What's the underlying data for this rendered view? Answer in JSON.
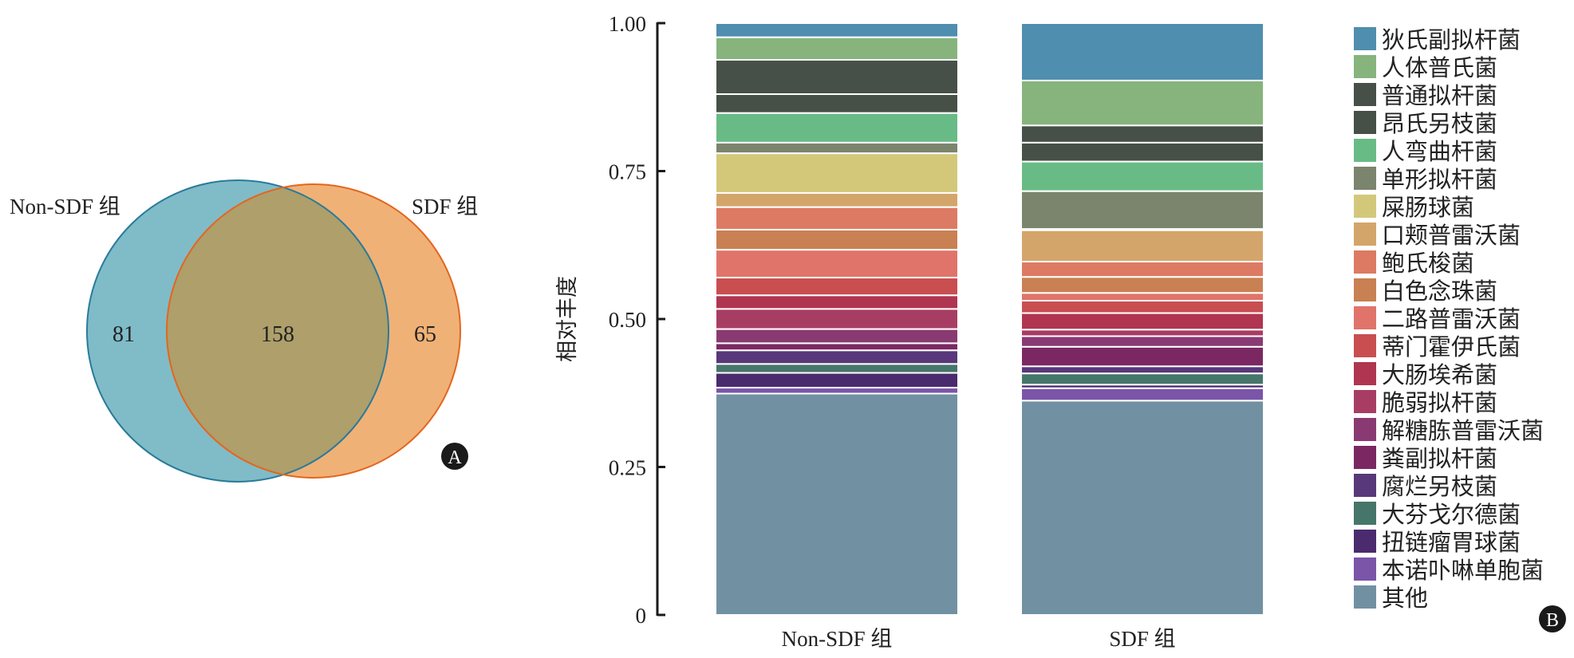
{
  "panel_a": {
    "badge": "A",
    "sets": [
      {
        "name": "Non-SDF 组",
        "unique": "81",
        "fill": "#7fbcc8",
        "stroke": "#2a7a9a"
      },
      {
        "name": "SDF 组",
        "unique": "65",
        "fill": "#f0b176",
        "stroke": "#e3661e"
      }
    ],
    "intersection": "158",
    "intersection_fill": "#ae9f6b"
  },
  "chart_data": {
    "type": "bar",
    "stacked": true,
    "badge": "B",
    "ylabel": "相对丰度",
    "xlabel": "",
    "ylim": [
      0,
      1
    ],
    "yticks": [
      "0",
      "0.25",
      "0.50",
      "0.75",
      "1.00"
    ],
    "ytick_values": [
      0,
      0.25,
      0.5,
      0.75,
      1.0
    ],
    "categories": [
      "Non-SDF 组",
      "SDF 组"
    ],
    "legend_position": "right",
    "series": [
      {
        "name": "狄氏副拟杆菌",
        "color": "#4f8eaf",
        "values": [
          0.024,
          0.097
        ]
      },
      {
        "name": "人体普氏菌",
        "color": "#86b47c",
        "values": [
          0.038,
          0.076
        ]
      },
      {
        "name": "普通拟杆菌",
        "color": "#475048",
        "values": [
          0.058,
          0.029
        ]
      },
      {
        "name": "昂氏另枝菌",
        "color": "#465046",
        "values": [
          0.032,
          0.032
        ]
      },
      {
        "name": "人弯曲杆菌",
        "color": "#69bb86",
        "values": [
          0.05,
          0.05
        ]
      },
      {
        "name": "单形拟杆菌",
        "color": "#7b846c",
        "values": [
          0.018,
          0.064
        ]
      },
      {
        "name": "屎肠球菌",
        "color": "#d3c87a",
        "values": [
          0.067,
          0.002
        ]
      },
      {
        "name": "口颊普雷沃菌",
        "color": "#d4a56a",
        "values": [
          0.024,
          0.053
        ]
      },
      {
        "name": "鲍氏梭菌",
        "color": "#dd7a63",
        "values": [
          0.038,
          0.026
        ]
      },
      {
        "name": "白色念珠菌",
        "color": "#c98052",
        "values": [
          0.034,
          0.027
        ]
      },
      {
        "name": "二路普雷沃菌",
        "color": "#e0746a",
        "values": [
          0.047,
          0.013
        ]
      },
      {
        "name": "蒂门霍伊氏菌",
        "color": "#c94e50",
        "values": [
          0.03,
          0.021
        ]
      },
      {
        "name": "大肠埃希菌",
        "color": "#b03550",
        "values": [
          0.023,
          0.028
        ]
      },
      {
        "name": "脆弱拟杆菌",
        "color": "#a83d63",
        "values": [
          0.034,
          0.011
        ]
      },
      {
        "name": "解糖胨普雷沃菌",
        "color": "#8a3a72",
        "values": [
          0.024,
          0.018
        ]
      },
      {
        "name": "粪副拟杆菌",
        "color": "#7b2862",
        "values": [
          0.012,
          0.033
        ]
      },
      {
        "name": "腐烂另枝菌",
        "color": "#58377a",
        "values": [
          0.023,
          0.012
        ]
      },
      {
        "name": "大芬戈尔德菌",
        "color": "#46756a",
        "values": [
          0.015,
          0.019
        ]
      },
      {
        "name": "扭链瘤胃球菌",
        "color": "#4a2b6e",
        "values": [
          0.025,
          0.006
        ]
      },
      {
        "name": "本诺卟啉单胞菌",
        "color": "#7a55a8",
        "values": [
          0.01,
          0.021
        ]
      },
      {
        "name": "其他",
        "color": "#7191a2",
        "values": [
          0.374,
          0.362
        ]
      }
    ]
  }
}
